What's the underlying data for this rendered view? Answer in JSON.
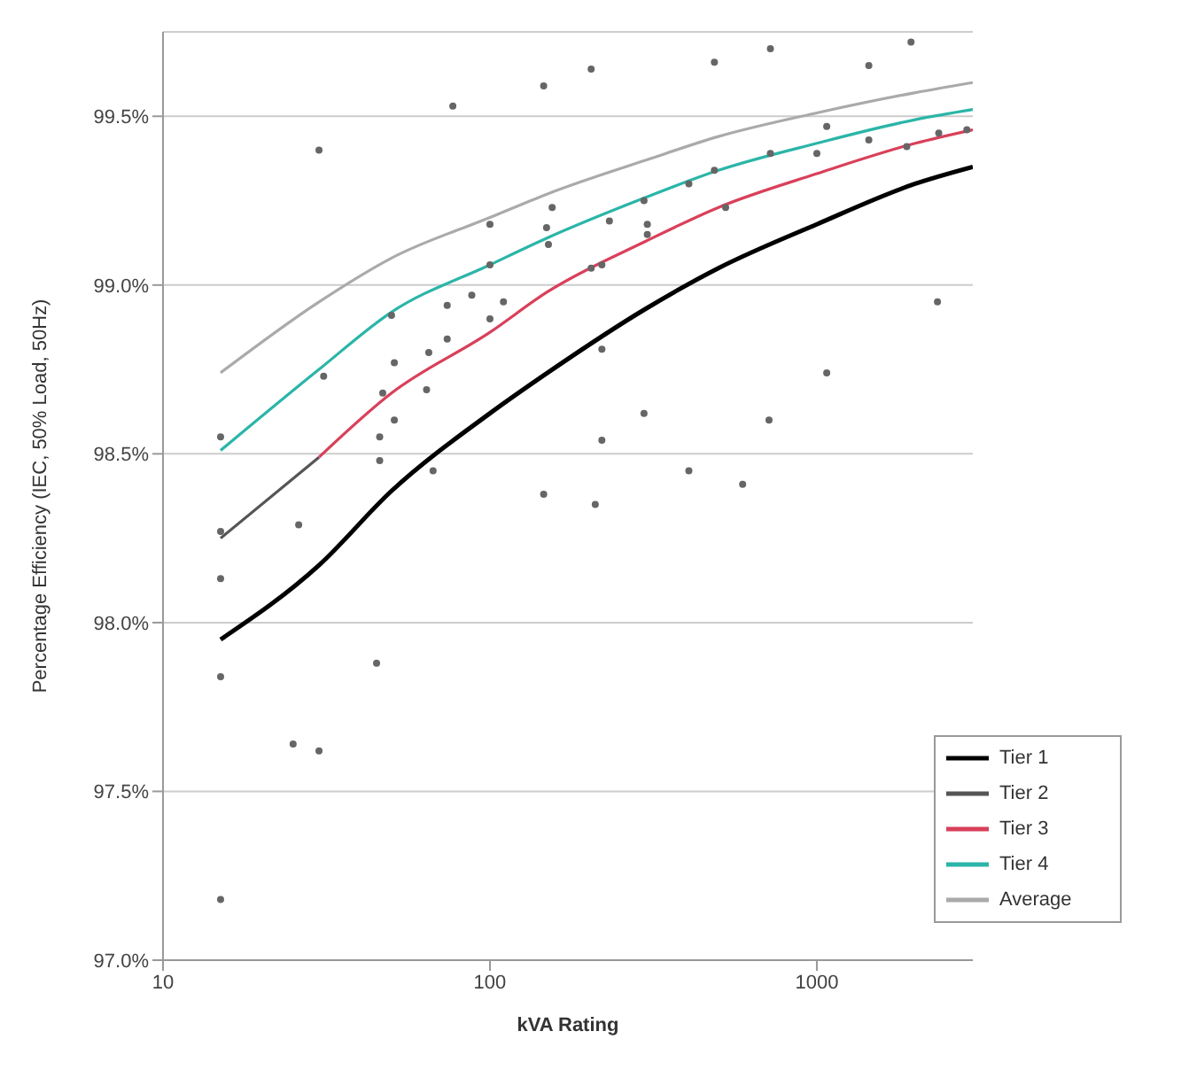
{
  "chart_data": {
    "type": "line",
    "xlabel": "kVA Rating",
    "ylabel": "Percentage Efficiency (IEC, 50% Load, 50Hz)",
    "log": "x",
    "grid": "y",
    "legend": "bottom right",
    "marker": "none",
    "line_style": "solid",
    "xlim": [
      10,
      3000
    ],
    "xticks": [
      10,
      100,
      1000
    ],
    "ylim": [
      97,
      99.75
    ],
    "yticks": [
      {
        "value": 97,
        "label": "97.0%"
      },
      {
        "value": 97.5,
        "label": "97.5%"
      },
      {
        "value": 98,
        "label": "98.0%"
      },
      {
        "value": 98.5,
        "label": "98.5%"
      },
      {
        "value": 99,
        "label": "99.0%"
      },
      {
        "value": 99.5,
        "label": "99.5%"
      }
    ],
    "series": [
      {
        "type": "scatter",
        "color": "#666666",
        "marker": "circle",
        "x": [
          15,
          15,
          15,
          15,
          15,
          25,
          30,
          26,
          31,
          50,
          46,
          46,
          47,
          64,
          65,
          74,
          74,
          51,
          51,
          100,
          100,
          100,
          88,
          110,
          149,
          151,
          155,
          204,
          220,
          232,
          296,
          303,
          303,
          406,
          486,
          526,
          721,
          1000,
          1072,
          1442,
          1884,
          2360,
          2877,
          220,
          220,
          296,
          406,
          714,
          1072,
          2339,
          146,
          204,
          486,
          721,
          1941,
          1442,
          146,
          77,
          45,
          67,
          30,
          210,
          593
        ],
        "values": [
          98.55,
          98.27,
          98.13,
          97.84,
          97.18,
          97.64,
          97.62,
          98.29,
          98.73,
          98.91,
          98.48,
          98.55,
          98.68,
          98.69,
          98.8,
          98.84,
          98.94,
          98.6,
          98.77,
          99.18,
          99.06,
          98.9,
          98.97,
          98.95,
          99.17,
          99.12,
          99.23,
          99.05,
          99.06,
          99.19,
          99.25,
          99.15,
          99.18,
          99.3,
          99.34,
          99.23,
          99.39,
          99.39,
          99.47,
          99.43,
          99.41,
          99.45,
          99.46,
          98.81,
          98.54,
          98.62,
          98.45,
          98.6,
          98.74,
          98.95,
          98.38,
          99.64,
          99.66,
          99.7,
          99.72,
          99.65,
          99.59,
          99.53,
          97.88,
          98.45,
          99.4,
          98.35,
          98.41
        ]
      },
      {
        "name": "Tier 1",
        "color": "#000000",
        "x": [
          15,
          30,
          50,
          100,
          150,
          300,
          500,
          1000,
          2000,
          3000
        ],
        "values": [
          97.95,
          98.17,
          98.39,
          98.62,
          98.74,
          98.93,
          99.05,
          99.18,
          99.3,
          99.35
        ]
      },
      {
        "name": "Tier 2",
        "color": "#555555",
        "x": [
          15,
          30
        ],
        "values": [
          98.25,
          98.49
        ]
      },
      {
        "name": "Tier 3",
        "color": "#d9405a",
        "x": [
          30,
          50,
          100,
          150,
          300,
          500,
          1000,
          2000,
          3000
        ],
        "values": [
          98.49,
          98.68,
          98.86,
          98.98,
          99.13,
          99.23,
          99.33,
          99.42,
          99.46
        ]
      },
      {
        "name": "Tier 4",
        "color": "#2bb5a8",
        "x": [
          15,
          30,
          50,
          100,
          150,
          300,
          500,
          1000,
          2000,
          3000
        ],
        "values": [
          98.51,
          98.75,
          98.92,
          99.06,
          99.14,
          99.26,
          99.34,
          99.42,
          99.49,
          99.52
        ]
      },
      {
        "name": "Average",
        "color": "#aaaaaa",
        "x": [
          15,
          30,
          50,
          100,
          150,
          300,
          500,
          1000,
          2000,
          3000
        ],
        "values": [
          98.74,
          98.95,
          99.08,
          99.2,
          99.27,
          99.37,
          99.44,
          99.51,
          99.57,
          99.6
        ]
      }
    ]
  }
}
